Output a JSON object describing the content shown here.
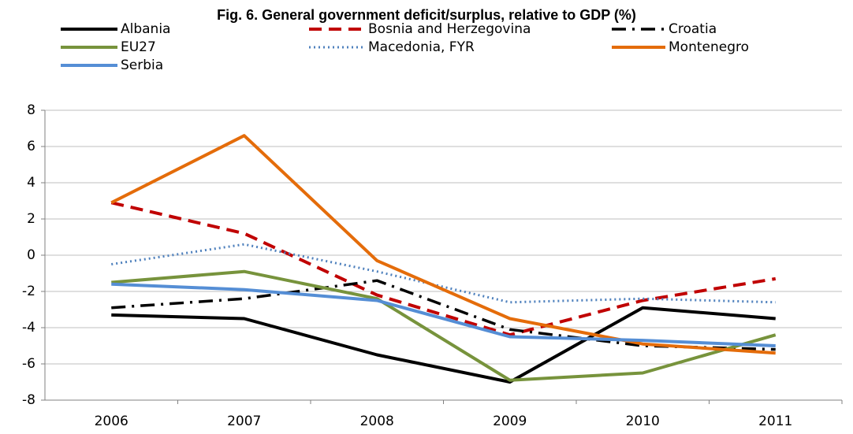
{
  "chart_data": {
    "type": "line",
    "title": "Fig. 6. General government deficit/surplus, relative to GDP (%)",
    "categories": [
      "2006",
      "2007",
      "2008",
      "2009",
      "2010",
      "2011"
    ],
    "series": [
      {
        "name": "Albania",
        "color": "#000000",
        "style": "solid",
        "values": [
          -3.3,
          -3.5,
          -5.5,
          -7.0,
          -2.9,
          -3.5
        ]
      },
      {
        "name": "Bosnia and Herzegovina",
        "color": "#c00000",
        "style": "dashed",
        "values": [
          2.9,
          1.2,
          -2.2,
          -4.4,
          -2.5,
          -1.3
        ]
      },
      {
        "name": "Croatia",
        "color": "#000000",
        "style": "dashdot",
        "values": [
          -2.9,
          -2.4,
          -1.4,
          -4.1,
          -5.0,
          -5.2
        ]
      },
      {
        "name": "EU27",
        "color": "#77933c",
        "style": "solid",
        "values": [
          -1.5,
          -0.9,
          -2.4,
          -6.9,
          -6.5,
          -4.4
        ]
      },
      {
        "name": "Macedonia, FYR",
        "color": "#4f81bd",
        "style": "dotted",
        "values": [
          -0.5,
          0.6,
          -0.9,
          -2.6,
          -2.4,
          -2.6
        ]
      },
      {
        "name": "Montenegro",
        "color": "#e46c0a",
        "style": "solid",
        "values": [
          2.9,
          6.6,
          -0.3,
          -3.5,
          -4.9,
          -5.4
        ]
      },
      {
        "name": "Serbia",
        "color": "#558ed5",
        "style": "solid",
        "values": [
          -1.6,
          -1.9,
          -2.5,
          -4.5,
          -4.7,
          -5.0
        ]
      }
    ],
    "ylim": [
      -8,
      8
    ],
    "yticks": [
      -8,
      -6,
      -4,
      -2,
      0,
      2,
      4,
      6,
      8
    ],
    "grid": true
  }
}
